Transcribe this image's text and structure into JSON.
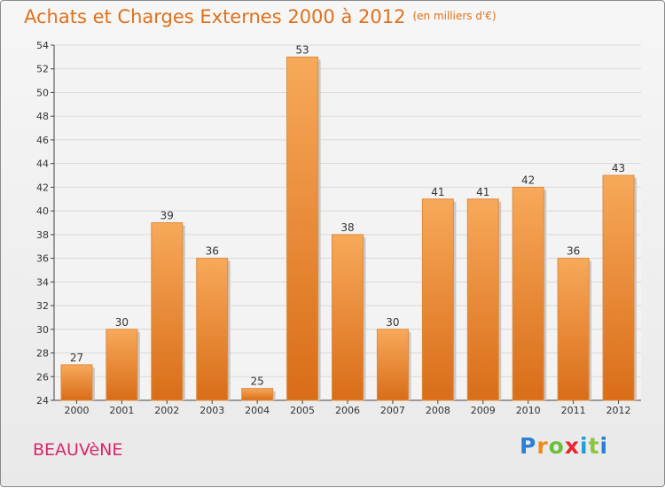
{
  "header": {
    "title": "Achats et Charges Externes 2000 à 2012",
    "subtitle": "(en milliers d'€)"
  },
  "footer": {
    "town": "BEAUVèNE",
    "brand": {
      "letters": [
        "P",
        "r",
        "o",
        "x",
        "i",
        "t",
        "i"
      ],
      "colors": [
        "#2b7fd4",
        "#f08a1c",
        "#6abf3a",
        "#e8242e",
        "#1e9fd8",
        "#8bc43f",
        "#2b7fd4"
      ]
    }
  },
  "chart_data": {
    "type": "bar",
    "title": "Achats et Charges Externes 2000 à 2012",
    "subtitle": "(en milliers d'€)",
    "categories": [
      "2000",
      "2001",
      "2002",
      "2003",
      "2004",
      "2005",
      "2006",
      "2007",
      "2008",
      "2009",
      "2010",
      "2011",
      "2012"
    ],
    "values": [
      27,
      30,
      39,
      36,
      25,
      53,
      38,
      30,
      41,
      41,
      42,
      36,
      43
    ],
    "ylim": [
      24,
      54
    ],
    "yticks": [
      24,
      26,
      28,
      30,
      32,
      34,
      36,
      38,
      40,
      42,
      44,
      46,
      48,
      50,
      52,
      54
    ],
    "grid": true,
    "bar_color_top": "#f7a95a",
    "bar_color_bottom": "#d96d18",
    "label_color": "#333333"
  }
}
